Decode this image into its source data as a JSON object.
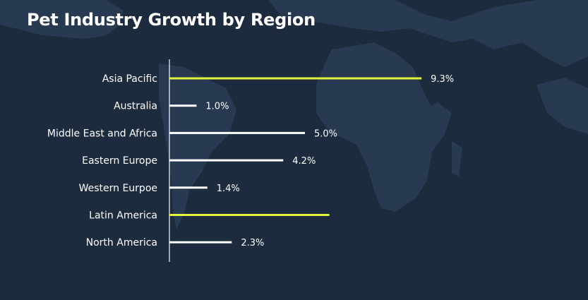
{
  "chart_data": {
    "type": "bar",
    "orientation": "horizontal",
    "title": "Pet Industry Growth by Region",
    "categories": [
      "Asia Pacific",
      "Australia",
      "Middle East and Africa",
      "Eastern Europe",
      "Western Eurpoe",
      "Latin America",
      "North America"
    ],
    "values": [
      9.3,
      1.0,
      5.0,
      4.2,
      1.4,
      5.9,
      2.3
    ],
    "value_labels": [
      "9.3%",
      "1.0%",
      "5.0%",
      "4.2%",
      "1.4%",
      "",
      "2.3%"
    ],
    "highlight": [
      true,
      false,
      false,
      false,
      false,
      true,
      false
    ],
    "xlim": [
      0,
      10
    ],
    "grid": false,
    "colors": {
      "highlight": "#e2f53c",
      "default": "#ffffff",
      "axis": "#c9cfd6",
      "background": "#1c2b3d",
      "map": "#2a3c54"
    }
  }
}
